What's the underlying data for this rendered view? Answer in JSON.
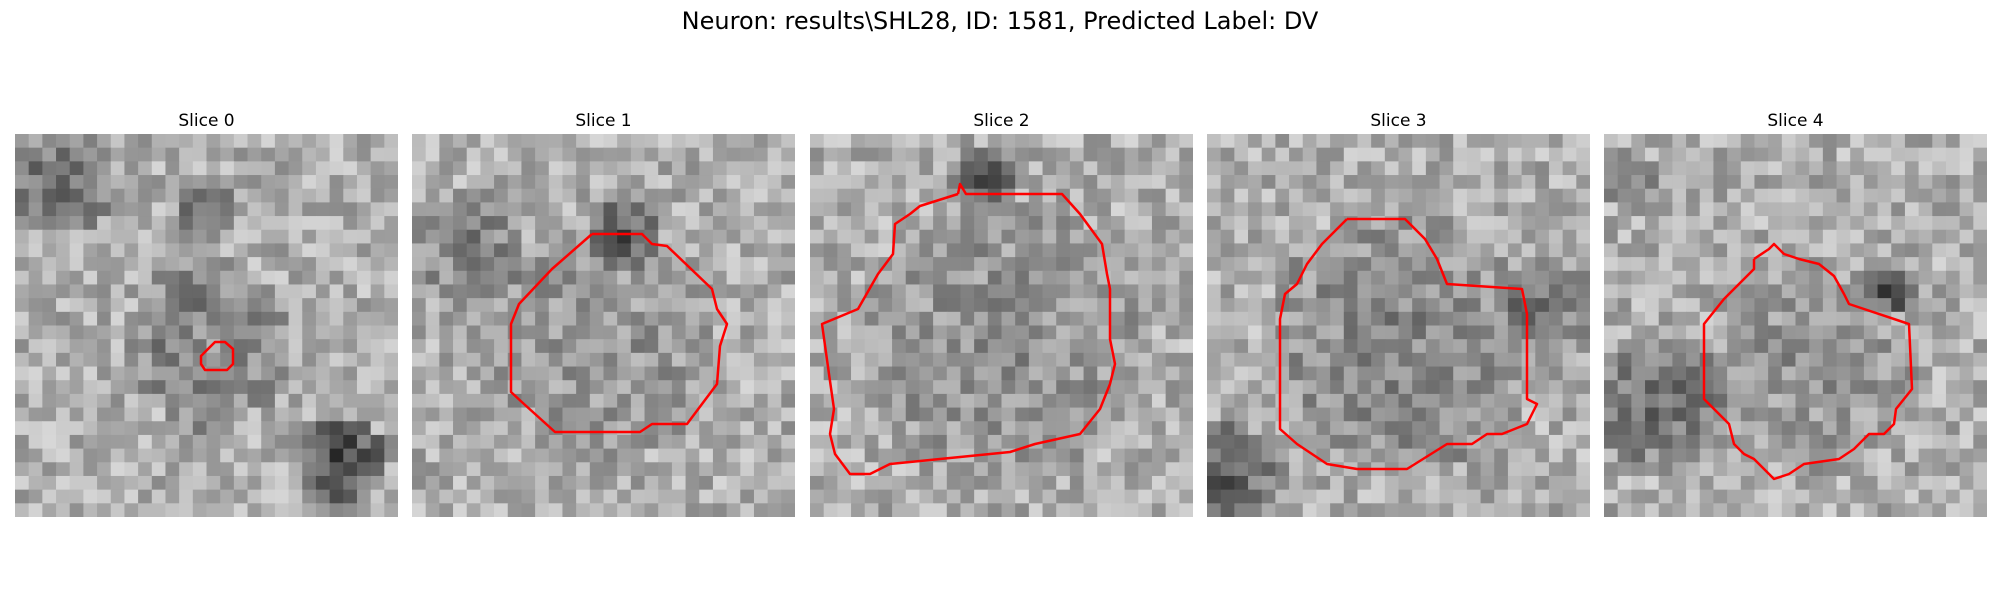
{
  "figure": {
    "title": "Neuron: results\\SHL28, ID: 1581, Predicted Label: DV"
  },
  "panels": [
    {
      "title": "Slice 0",
      "contour_color": "#ff0000"
    },
    {
      "title": "Slice 1",
      "contour_color": "#ff0000"
    },
    {
      "title": "Slice 2",
      "contour_color": "#ff0000"
    },
    {
      "title": "Slice 3",
      "contour_color": "#ff0000"
    },
    {
      "title": "Slice 4",
      "contour_color": "#ff0000"
    }
  ]
}
